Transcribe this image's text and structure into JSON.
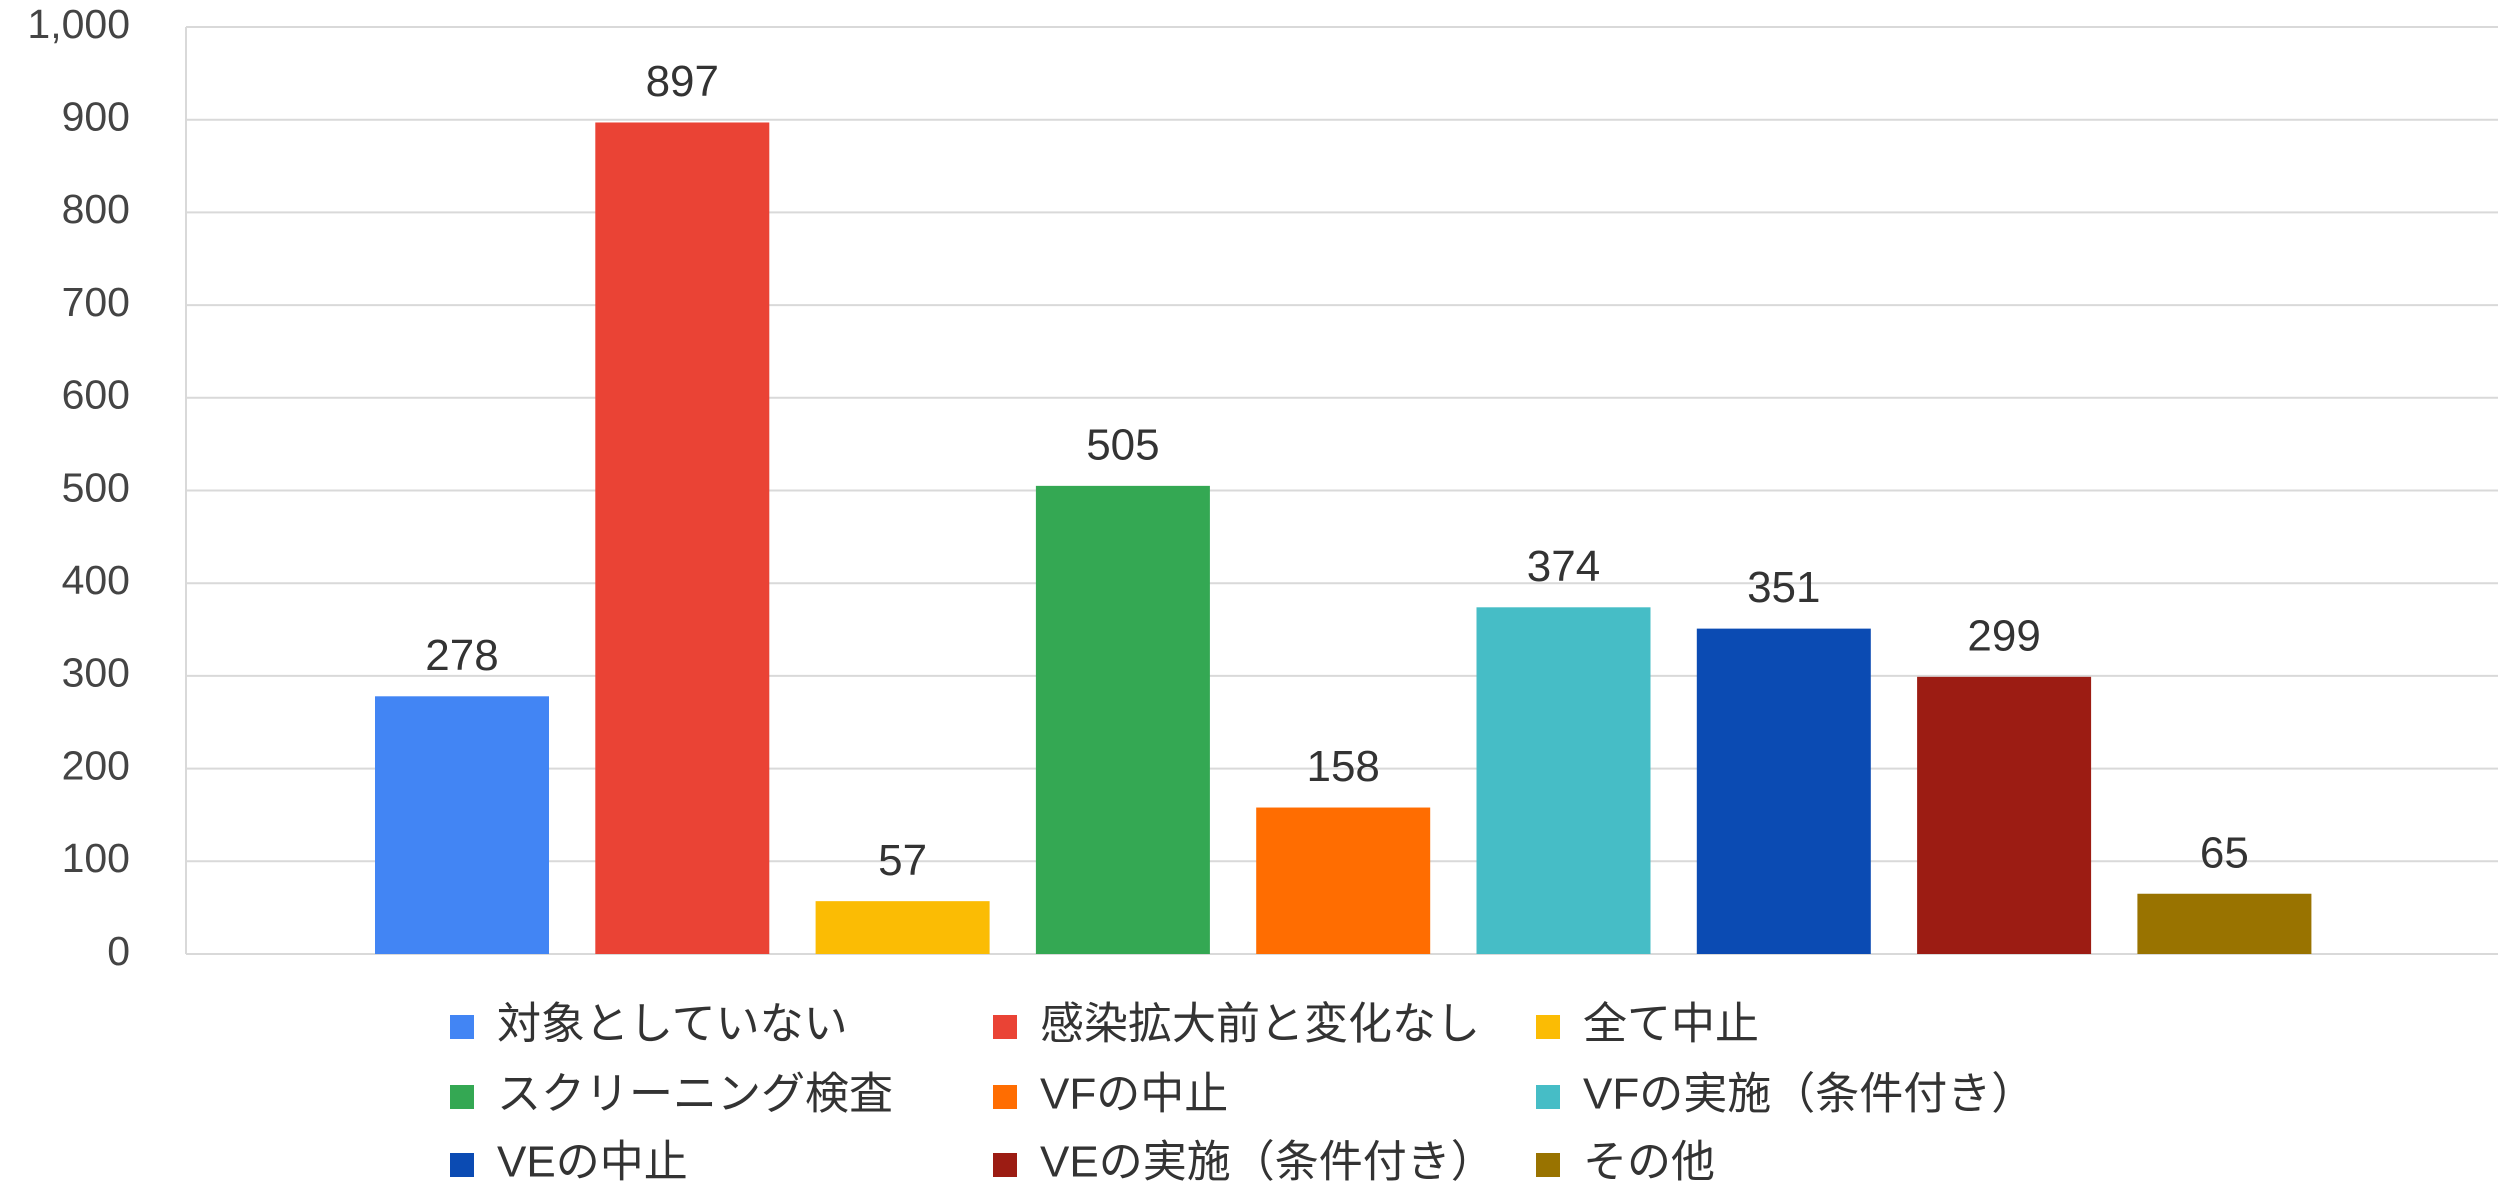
{
  "chart_data": {
    "type": "bar",
    "categories": [
      "対象としていない",
      "感染拡大前と変化なし",
      "全て中止",
      "スクリーニング検査",
      "VFの中止",
      "VFの実施（条件付き）",
      "VEの中止",
      "VEの実施（条件付き）",
      "その他"
    ],
    "values": [
      278,
      897,
      57,
      505,
      158,
      374,
      351,
      299,
      65
    ],
    "colors": [
      "#4285f4",
      "#ea4335",
      "#fbbc04",
      "#34a853",
      "#ff6d01",
      "#46bdc6",
      "#0b4bb3",
      "#9c1c13",
      "#997300"
    ],
    "ylim": [
      0,
      1000
    ],
    "yticks": [
      0,
      100,
      200,
      300,
      400,
      500,
      600,
      700,
      800,
      900,
      {
        "value": 1000,
        "label": "1,000"
      }
    ],
    "grid": true,
    "legend": "bottom"
  }
}
